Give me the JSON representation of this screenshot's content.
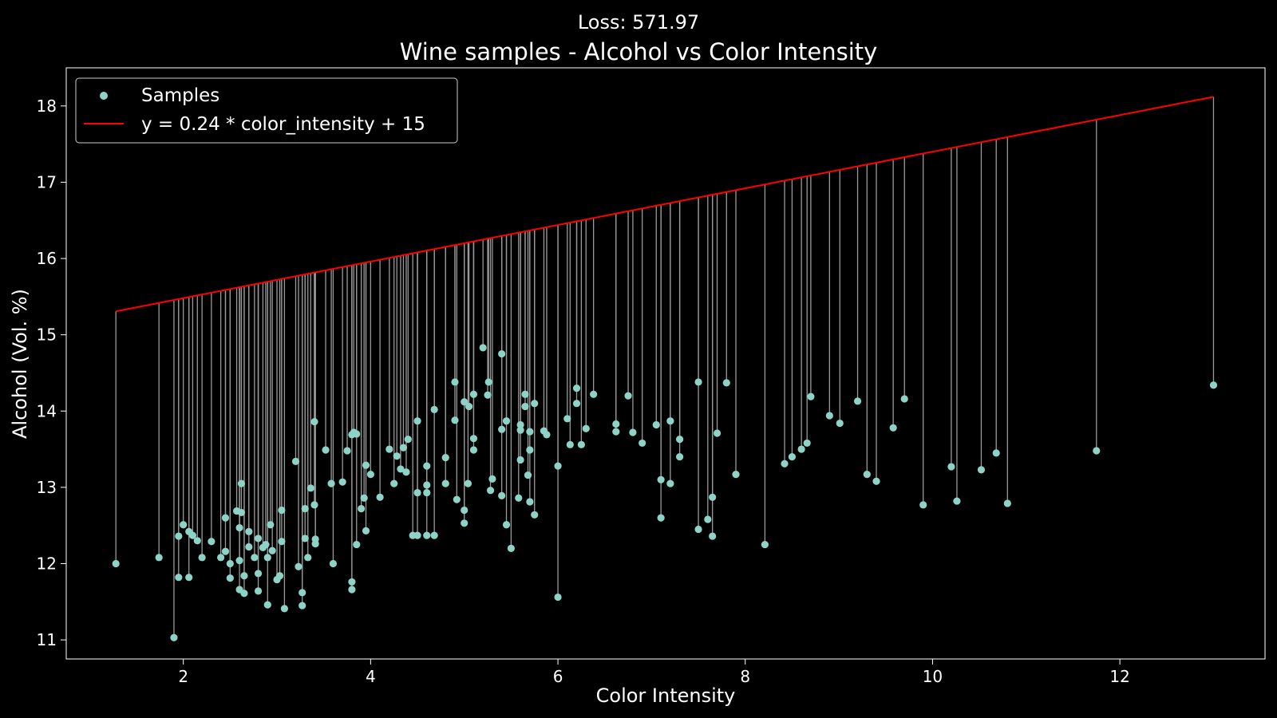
{
  "chart_data": {
    "type": "scatter",
    "suptitle": "Loss: 571.97",
    "title": "Wine samples - Alcohol vs Color Intensity",
    "xlabel": "Color Intensity",
    "ylabel": "Alcohol (Vol. %)",
    "xlim": [
      0.75,
      13.55
    ],
    "ylim": [
      10.75,
      18.5
    ],
    "xticks": [
      2,
      4,
      6,
      8,
      10,
      12
    ],
    "yticks": [
      11,
      12,
      13,
      14,
      15,
      16,
      17,
      18
    ],
    "grid": false,
    "legend_position": "top-left",
    "line": {
      "name": "y = 0.24 * color_intensity + 15",
      "slope": 0.24,
      "intercept": 15,
      "x_range": [
        1.28,
        13.0
      ],
      "color": "#ff0000"
    },
    "residual_color": "#999999",
    "series": [
      {
        "name": "Samples",
        "color": "#8dd3c7",
        "points": [
          [
            1.28,
            12.0
          ],
          [
            1.74,
            12.08
          ],
          [
            1.9,
            11.03
          ],
          [
            1.95,
            12.36
          ],
          [
            1.95,
            11.82
          ],
          [
            2.0,
            12.51
          ],
          [
            2.06,
            11.82
          ],
          [
            2.06,
            12.42
          ],
          [
            2.1,
            12.37
          ],
          [
            2.15,
            12.3
          ],
          [
            2.2,
            12.08
          ],
          [
            2.3,
            12.29
          ],
          [
            2.4,
            12.08
          ],
          [
            2.45,
            12.6
          ],
          [
            2.45,
            12.16
          ],
          [
            2.5,
            12.0
          ],
          [
            2.5,
            11.81
          ],
          [
            2.57,
            12.69
          ],
          [
            2.6,
            12.47
          ],
          [
            2.6,
            12.04
          ],
          [
            2.6,
            11.66
          ],
          [
            2.62,
            13.05
          ],
          [
            2.62,
            12.67
          ],
          [
            2.65,
            11.84
          ],
          [
            2.65,
            11.61
          ],
          [
            2.7,
            12.22
          ],
          [
            2.7,
            12.42
          ],
          [
            2.76,
            12.08
          ],
          [
            2.8,
            12.33
          ],
          [
            2.8,
            11.87
          ],
          [
            2.8,
            11.64
          ],
          [
            2.85,
            12.21
          ],
          [
            2.88,
            12.25
          ],
          [
            2.9,
            12.08
          ],
          [
            2.9,
            11.46
          ],
          [
            2.93,
            12.51
          ],
          [
            2.95,
            12.17
          ],
          [
            3.0,
            11.79
          ],
          [
            3.03,
            11.84
          ],
          [
            3.05,
            12.7
          ],
          [
            3.05,
            12.29
          ],
          [
            3.08,
            11.41
          ],
          [
            3.2,
            13.34
          ],
          [
            3.23,
            11.96
          ],
          [
            3.27,
            11.62
          ],
          [
            3.27,
            11.45
          ],
          [
            3.3,
            12.33
          ],
          [
            3.3,
            12.72
          ],
          [
            3.33,
            12.08
          ],
          [
            3.36,
            12.99
          ],
          [
            3.4,
            13.86
          ],
          [
            3.4,
            12.77
          ],
          [
            3.41,
            12.32
          ],
          [
            3.41,
            12.26
          ],
          [
            3.52,
            13.49
          ],
          [
            3.58,
            13.05
          ],
          [
            3.6,
            12.0
          ],
          [
            3.7,
            13.07
          ],
          [
            3.75,
            13.48
          ],
          [
            3.8,
            13.69
          ],
          [
            3.8,
            11.76
          ],
          [
            3.8,
            11.66
          ],
          [
            3.82,
            13.72
          ],
          [
            3.85,
            13.7
          ],
          [
            3.85,
            12.25
          ],
          [
            3.9,
            12.72
          ],
          [
            3.93,
            12.86
          ],
          [
            3.95,
            13.29
          ],
          [
            3.95,
            12.43
          ],
          [
            4.0,
            13.17
          ],
          [
            4.1,
            12.87
          ],
          [
            4.2,
            13.5
          ],
          [
            4.25,
            13.05
          ],
          [
            4.28,
            13.41
          ],
          [
            4.32,
            13.24
          ],
          [
            4.35,
            13.52
          ],
          [
            4.38,
            13.2
          ],
          [
            4.4,
            13.63
          ],
          [
            4.45,
            12.37
          ],
          [
            4.5,
            13.87
          ],
          [
            4.5,
            12.93
          ],
          [
            4.5,
            12.37
          ],
          [
            4.6,
            13.28
          ],
          [
            4.6,
            13.03
          ],
          [
            4.6,
            12.93
          ],
          [
            4.6,
            12.37
          ],
          [
            4.68,
            14.02
          ],
          [
            4.68,
            12.37
          ],
          [
            4.8,
            13.39
          ],
          [
            4.8,
            13.05
          ],
          [
            4.9,
            14.38
          ],
          [
            4.9,
            13.88
          ],
          [
            4.92,
            12.84
          ],
          [
            5.0,
            14.12
          ],
          [
            5.0,
            12.7
          ],
          [
            5.0,
            12.53
          ],
          [
            5.05,
            14.06
          ],
          [
            5.04,
            13.05
          ],
          [
            5.1,
            14.22
          ],
          [
            5.1,
            13.64
          ],
          [
            5.1,
            13.49
          ],
          [
            5.2,
            14.83
          ],
          [
            5.25,
            14.21
          ],
          [
            5.26,
            14.38
          ],
          [
            5.3,
            13.11
          ],
          [
            5.28,
            12.96
          ],
          [
            5.4,
            14.75
          ],
          [
            5.4,
            13.76
          ],
          [
            5.4,
            12.89
          ],
          [
            5.45,
            13.87
          ],
          [
            5.45,
            12.51
          ],
          [
            5.5,
            12.2
          ],
          [
            5.58,
            12.86
          ],
          [
            5.6,
            13.82
          ],
          [
            5.6,
            13.75
          ],
          [
            5.6,
            13.36
          ],
          [
            5.65,
            14.22
          ],
          [
            5.65,
            14.06
          ],
          [
            5.68,
            13.16
          ],
          [
            5.7,
            13.73
          ],
          [
            5.7,
            13.49
          ],
          [
            5.7,
            12.81
          ],
          [
            5.75,
            14.1
          ],
          [
            5.75,
            12.64
          ],
          [
            5.85,
            13.74
          ],
          [
            5.88,
            13.69
          ],
          [
            6.0,
            13.28
          ],
          [
            6.0,
            11.56
          ],
          [
            6.1,
            13.9
          ],
          [
            6.13,
            13.56
          ],
          [
            6.2,
            14.3
          ],
          [
            6.2,
            14.1
          ],
          [
            6.25,
            13.56
          ],
          [
            6.3,
            13.77
          ],
          [
            6.38,
            14.22
          ],
          [
            6.62,
            13.83
          ],
          [
            6.62,
            13.73
          ],
          [
            6.75,
            14.2
          ],
          [
            6.8,
            13.72
          ],
          [
            6.9,
            13.58
          ],
          [
            7.05,
            13.82
          ],
          [
            7.1,
            13.1
          ],
          [
            7.1,
            12.6
          ],
          [
            7.2,
            13.87
          ],
          [
            7.2,
            13.05
          ],
          [
            7.3,
            13.63
          ],
          [
            7.3,
            13.4
          ],
          [
            7.5,
            14.38
          ],
          [
            7.5,
            12.45
          ],
          [
            7.6,
            12.58
          ],
          [
            7.65,
            12.87
          ],
          [
            7.65,
            12.36
          ],
          [
            7.7,
            13.71
          ],
          [
            7.8,
            14.37
          ],
          [
            7.9,
            13.17
          ],
          [
            8.21,
            12.25
          ],
          [
            8.42,
            13.31
          ],
          [
            8.5,
            13.4
          ],
          [
            8.6,
            13.5
          ],
          [
            8.66,
            13.58
          ],
          [
            8.7,
            14.19
          ],
          [
            8.9,
            13.94
          ],
          [
            9.01,
            13.84
          ],
          [
            9.2,
            14.13
          ],
          [
            9.3,
            13.17
          ],
          [
            9.4,
            13.08
          ],
          [
            9.58,
            13.78
          ],
          [
            9.7,
            14.16
          ],
          [
            9.9,
            12.77
          ],
          [
            10.2,
            13.27
          ],
          [
            10.26,
            12.82
          ],
          [
            10.52,
            13.23
          ],
          [
            10.68,
            13.45
          ],
          [
            10.8,
            12.79
          ],
          [
            11.75,
            13.48
          ],
          [
            13.0,
            14.34
          ]
        ]
      }
    ]
  }
}
